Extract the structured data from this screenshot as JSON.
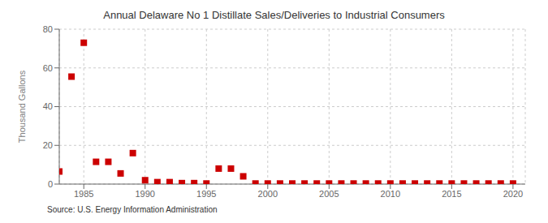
{
  "chart_data": {
    "type": "scatter",
    "title": "Annual Delaware No 1 Distillate Sales/Deliveries to Industrial Consumers",
    "ylabel": "Thousand Gallons",
    "annotation": "Source: U.S. Energy Information Administration",
    "x": [
      1983,
      1984,
      1985,
      1986,
      1987,
      1988,
      1989,
      1990,
      1991,
      1992,
      1993,
      1994,
      1995,
      1996,
      1997,
      1998,
      1999,
      2000,
      2001,
      2002,
      2003,
      2004,
      2005,
      2006,
      2007,
      2008,
      2009,
      2010,
      2011,
      2012,
      2013,
      2014,
      2015,
      2016,
      2017,
      2018,
      2019,
      2020
    ],
    "values": [
      6.5,
      55.5,
      73.0,
      11.5,
      11.5,
      5.5,
      16.0,
      2.0,
      1.0,
      1.0,
      0.5,
      0.5,
      0.3,
      8.0,
      8.0,
      4.0,
      0.3,
      0.3,
      0.3,
      0.3,
      0.3,
      0.3,
      0.3,
      0.3,
      0.3,
      0.3,
      0.3,
      0.3,
      0.3,
      0.3,
      0.3,
      0.3,
      0.3,
      0.3,
      0.3,
      0.3,
      0.3,
      0.3
    ],
    "color": "#cc0000",
    "marker": "square",
    "xlim": [
      1983,
      2021
    ],
    "xticks": [
      1985,
      1990,
      1995,
      2000,
      2005,
      2010,
      2015,
      2020
    ],
    "ylim": [
      0,
      80
    ],
    "yticks": [
      0,
      20,
      40,
      60,
      80
    ],
    "grid": true
  }
}
